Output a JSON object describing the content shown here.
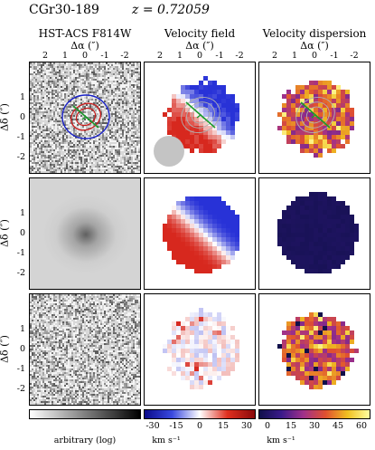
{
  "figure": {
    "object": "CGr30-189",
    "redshift": "z = 0.72059",
    "columns": [
      {
        "title": "HST-ACS F814W",
        "axis": "Δα (″)"
      },
      {
        "title": "Velocity field",
        "axis": "Δα (″)"
      },
      {
        "title": "Velocity dispersion",
        "axis": "Δα (″)"
      }
    ],
    "ylabel": "Δδ (″)",
    "xticks": [
      "2",
      "1",
      "0",
      "-1",
      "-2"
    ],
    "yticks": [
      "1",
      "0",
      "-1",
      "-2"
    ],
    "colorbars": [
      {
        "name": "hst",
        "label": "arbitrary (log)",
        "ticks": []
      },
      {
        "name": "velocity",
        "label": "km s⁻¹",
        "ticks": [
          "-30",
          "-15",
          "0",
          "15",
          "30"
        ]
      },
      {
        "name": "dispersion",
        "label": "km s⁻¹",
        "ticks": [
          "0",
          "15",
          "30",
          "45",
          "60"
        ]
      }
    ],
    "colors": {
      "velocity_neg": "#1010d0",
      "velocity_pos": "#d01010",
      "dispersion_low": "#20206a",
      "dispersion_high": "#f0c020"
    }
  }
}
